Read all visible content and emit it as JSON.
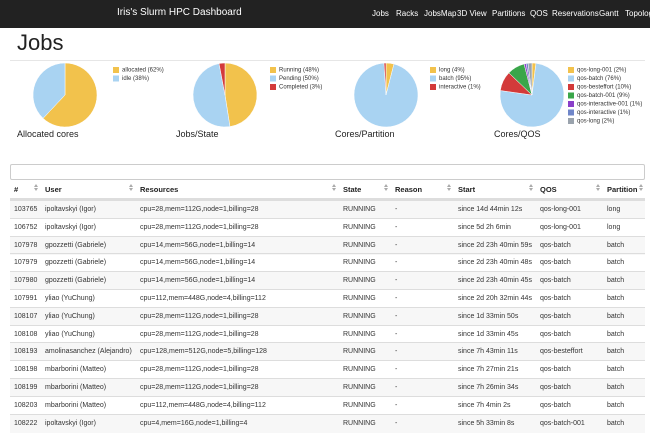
{
  "navbar": {
    "brand": "Iris's Slurm HPC Dashboard",
    "links": [
      "Jobs",
      "Racks",
      "JobsMap",
      "3D View",
      "Partitions",
      "QOS",
      "Reservations",
      "Gantt",
      "Topology"
    ]
  },
  "heading": "Jobs",
  "charts": [
    {
      "title": "Allocated cores",
      "slices": [
        {
          "label": "allocated (62%)",
          "value": 62,
          "color": "#f2c24c"
        },
        {
          "label": "idle (38%)",
          "value": 38,
          "color": "#a9d3f2"
        }
      ]
    },
    {
      "title": "Jobs/State",
      "slices": [
        {
          "label": "Running (48%)",
          "value": 48,
          "color": "#f2c24c"
        },
        {
          "label": "Pending (50%)",
          "value": 50,
          "color": "#a9d3f2"
        },
        {
          "label": "Completed (3%)",
          "value": 3,
          "color": "#d33a3a"
        }
      ]
    },
    {
      "title": "Cores/Partition",
      "slices": [
        {
          "label": "long (4%)",
          "value": 4,
          "color": "#f2c24c"
        },
        {
          "label": "batch (95%)",
          "value": 95,
          "color": "#a9d3f2"
        },
        {
          "label": "interactive (1%)",
          "value": 1,
          "color": "#d33a3a"
        }
      ]
    },
    {
      "title": "Cores/QOS",
      "slices": [
        {
          "label": "qos-long-001 (2%)",
          "value": 2,
          "color": "#f2c24c"
        },
        {
          "label": "qos-batch (76%)",
          "value": 76,
          "color": "#a9d3f2"
        },
        {
          "label": "qos-besteffort (10%)",
          "value": 10,
          "color": "#d33a3a"
        },
        {
          "label": "qos-batch-001 (9%)",
          "value": 9,
          "color": "#3aa64a"
        },
        {
          "label": "qos-interactive-001 (1%)",
          "value": 1,
          "color": "#8a3fc9"
        },
        {
          "label": "qos-interactive (1%)",
          "value": 1,
          "color": "#6f86c9"
        },
        {
          "label": "qos-long (2%)",
          "value": 2,
          "color": "#9aa3ad"
        }
      ]
    }
  ],
  "table": {
    "columns": [
      "#",
      "User",
      "Resources",
      "State",
      "Reason",
      "Start",
      "QOS",
      "Partition"
    ],
    "rows": [
      [
        "103765",
        "ipoltavskyi (Igor)",
        "cpu=28,mem=112G,node=1,billing=28",
        "RUNNING",
        "-",
        "since 14d 44min 12s",
        "qos-long-001",
        "long"
      ],
      [
        "106752",
        "ipoltavskyi (Igor)",
        "cpu=28,mem=112G,node=1,billing=28",
        "RUNNING",
        "-",
        "since 5d 2h 6min",
        "qos-long-001",
        "long"
      ],
      [
        "107978",
        "gpozzetti (Gabriele)",
        "cpu=14,mem=56G,node=1,billing=14",
        "RUNNING",
        "-",
        "since 2d 23h 40min 59s",
        "qos-batch",
        "batch"
      ],
      [
        "107979",
        "gpozzetti (Gabriele)",
        "cpu=14,mem=56G,node=1,billing=14",
        "RUNNING",
        "-",
        "since 2d 23h 40min 48s",
        "qos-batch",
        "batch"
      ],
      [
        "107980",
        "gpozzetti (Gabriele)",
        "cpu=14,mem=56G,node=1,billing=14",
        "RUNNING",
        "-",
        "since 2d 23h 40min 45s",
        "qos-batch",
        "batch"
      ],
      [
        "107991",
        "yliao (YuChung)",
        "cpu=112,mem=448G,node=4,billing=112",
        "RUNNING",
        "-",
        "since 2d 20h 32min 44s",
        "qos-batch",
        "batch"
      ],
      [
        "108107",
        "yliao (YuChung)",
        "cpu=28,mem=112G,node=1,billing=28",
        "RUNNING",
        "-",
        "since 1d 33min 50s",
        "qos-batch",
        "batch"
      ],
      [
        "108108",
        "yliao (YuChung)",
        "cpu=28,mem=112G,node=1,billing=28",
        "RUNNING",
        "-",
        "since 1d 33min 45s",
        "qos-batch",
        "batch"
      ],
      [
        "108193",
        "amolinasanchez (Alejandro)",
        "cpu=128,mem=512G,node=5,billing=128",
        "RUNNING",
        "-",
        "since 7h 43min 11s",
        "qos-besteffort",
        "batch"
      ],
      [
        "108198",
        "mbarborini (Matteo)",
        "cpu=28,mem=112G,node=1,billing=28",
        "RUNNING",
        "-",
        "since 7h 27min 21s",
        "qos-batch",
        "batch"
      ],
      [
        "108199",
        "mbarborini (Matteo)",
        "cpu=28,mem=112G,node=1,billing=28",
        "RUNNING",
        "-",
        "since 7h 26min 34s",
        "qos-batch",
        "batch"
      ],
      [
        "108203",
        "mbarborini (Matteo)",
        "cpu=112,mem=448G,node=4,billing=112",
        "RUNNING",
        "-",
        "since 7h 4min 2s",
        "qos-batch",
        "batch"
      ],
      [
        "108222",
        "ipoltavskyi (Igor)",
        "cpu=4,mem=16G,node=1,billing=4",
        "RUNNING",
        "-",
        "since 5h 33min 8s",
        "qos-batch-001",
        "batch"
      ]
    ]
  }
}
